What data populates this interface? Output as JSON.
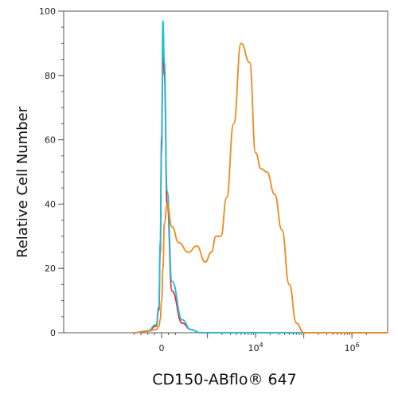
{
  "chart_data": {
    "type": "line",
    "title": "",
    "xlabel": "CD150-ABflo® 647",
    "ylabel": "Relative Cell Number",
    "x_scale": "biexponential",
    "xlim": [
      -400,
      2000000
    ],
    "ylim": [
      0,
      100
    ],
    "grid": false,
    "legend": "none",
    "x_tick_labels": [
      {
        "value": 0,
        "label": "0"
      },
      {
        "value": 10000,
        "label": "10",
        "exponent": "4"
      },
      {
        "value": 1000000,
        "label": "10",
        "exponent": "6"
      }
    ],
    "y_ticks": [
      0,
      20,
      40,
      60,
      80,
      100
    ],
    "series": [
      {
        "color": "#e8282c",
        "x": [
          -400,
          -200,
          -80,
          -40,
          -20,
          0,
          20,
          40,
          80,
          150,
          300,
          450,
          700,
          1000
        ],
        "y": [
          0,
          0.5,
          2,
          7,
          25,
          57,
          94,
          80,
          40,
          13,
          3,
          1,
          0,
          0
        ]
      },
      {
        "color": "#1bbfe0",
        "x": [
          -400,
          -200,
          -80,
          -40,
          -20,
          0,
          20,
          40,
          80,
          150,
          300,
          450,
          700,
          1000
        ],
        "y": [
          0,
          0.6,
          2.5,
          8,
          28,
          61,
          97,
          84,
          44,
          16,
          4,
          1,
          0,
          0
        ]
      },
      {
        "color": "#f08a1c",
        "x": [
          -400,
          -200,
          -80,
          -40,
          -20,
          0,
          20,
          40,
          80,
          150,
          250,
          400,
          600,
          900,
          1200,
          1500,
          1900,
          2500,
          3500,
          5000,
          7500,
          10000,
          13000,
          17000,
          25000,
          35000,
          50000,
          70000,
          100000,
          200000
        ],
        "y": [
          0,
          0.5,
          1,
          2,
          4,
          10,
          20,
          34,
          40,
          33,
          28,
          25,
          27,
          22,
          25,
          30,
          30,
          42,
          65,
          90,
          84,
          56,
          51,
          50,
          43,
          32,
          15,
          3,
          0,
          0
        ]
      }
    ]
  }
}
